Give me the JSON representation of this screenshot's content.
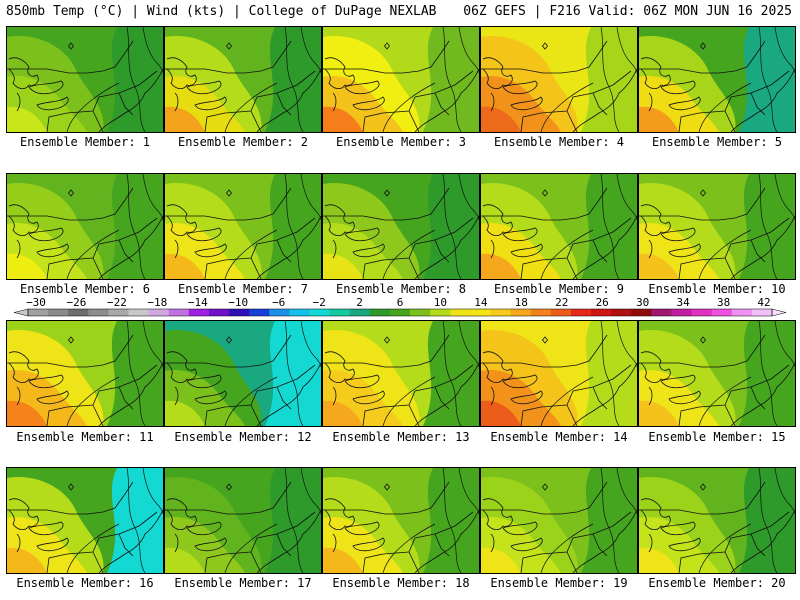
{
  "header": {
    "left_title": "850mb Temp (°C) | Wind (kts) | College of DuPage NEXLAB",
    "right_title": "06Z GEFS | F216 Valid: 06Z MON JUN 16 2025"
  },
  "members": [
    {
      "label": "Ensemble Member: 1",
      "scheme": [
        "#c8e61a",
        "#9bd21a",
        "#7cc01c",
        "#46a51f",
        "#2e9a2a"
      ]
    },
    {
      "label": "Ensemble Member: 2",
      "scheme": [
        "#f3a21c",
        "#e6dd10",
        "#b4dc1a",
        "#62b41e",
        "#2e9a2a"
      ]
    },
    {
      "label": "Ensemble Member: 3",
      "scheme": [
        "#f57e1a",
        "#f3c21b",
        "#f1ee12",
        "#b2da1a",
        "#70b91e"
      ]
    },
    {
      "label": "Ensemble Member: 4",
      "scheme": [
        "#ec6a1a",
        "#f2921b",
        "#f5c41b",
        "#eae616",
        "#a6d51a"
      ]
    },
    {
      "label": "Ensemble Member: 5",
      "scheme": [
        "#f49b1b",
        "#f0dc12",
        "#a6d51a",
        "#46a51f",
        "#1aa880"
      ]
    },
    {
      "label": "Ensemble Member: 6",
      "scheme": [
        "#eded12",
        "#c4e31a",
        "#94cd1a",
        "#62b41e",
        "#46a51f"
      ]
    },
    {
      "label": "Ensemble Member: 7",
      "scheme": [
        "#f5b81b",
        "#eee417",
        "#b4dc1a",
        "#7cc01c",
        "#46a51f"
      ]
    },
    {
      "label": "Ensemble Member: 8",
      "scheme": [
        "#e8e314",
        "#b4dc1a",
        "#8fc81c",
        "#46a51f",
        "#2e9a2a"
      ]
    },
    {
      "label": "Ensemble Member: 9",
      "scheme": [
        "#f5a81b",
        "#f0df12",
        "#b4dc1a",
        "#7cc01c",
        "#46a51f"
      ]
    },
    {
      "label": "Ensemble Member: 10",
      "scheme": [
        "#f5c21b",
        "#eee417",
        "#b4dc1a",
        "#7cc01c",
        "#46a51f"
      ]
    },
    {
      "label": "Ensemble Member: 11",
      "scheme": [
        "#f5821a",
        "#f5b81b",
        "#eee417",
        "#9bd21a",
        "#46a51f"
      ]
    },
    {
      "label": "Ensemble Member: 12",
      "scheme": [
        "#b4dc1a",
        "#7cc01c",
        "#46a51f",
        "#1aa880",
        "#14d8d2"
      ]
    },
    {
      "label": "Ensemble Member: 13",
      "scheme": [
        "#f5a81b",
        "#f5cc1b",
        "#eee417",
        "#b4dc1a",
        "#46a51f"
      ]
    },
    {
      "label": "Ensemble Member: 14",
      "scheme": [
        "#ec5c1a",
        "#f2921b",
        "#f5c41b",
        "#eee417",
        "#b4dc1a"
      ]
    },
    {
      "label": "Ensemble Member: 15",
      "scheme": [
        "#f5c21b",
        "#eee417",
        "#b4dc1a",
        "#7cc01c",
        "#46a51f"
      ]
    },
    {
      "label": "Ensemble Member: 16",
      "scheme": [
        "#f5b81b",
        "#eee417",
        "#b4dc1a",
        "#46a51f",
        "#14d8d2"
      ]
    },
    {
      "label": "Ensemble Member: 17",
      "scheme": [
        "#b4dc1a",
        "#8fc81c",
        "#62b41e",
        "#46a51f",
        "#2e9a2a"
      ]
    },
    {
      "label": "Ensemble Member: 18",
      "scheme": [
        "#f5b81b",
        "#eee417",
        "#b4dc1a",
        "#7cc01c",
        "#46a51f"
      ]
    },
    {
      "label": "Ensemble Member: 19",
      "scheme": [
        "#eee417",
        "#c4e31a",
        "#9bd21a",
        "#7cc01c",
        "#46a51f"
      ]
    },
    {
      "label": "Ensemble Member: 20",
      "scheme": [
        "#eee417",
        "#c4e31a",
        "#9bd21a",
        "#62b41e",
        "#2e9a2a"
      ]
    }
  ],
  "colorbar": {
    "ticks": [
      "-30",
      "-26",
      "-22",
      "-18",
      "-14",
      "-10",
      "-6",
      "-2",
      "2",
      "6",
      "10",
      "14",
      "18",
      "22",
      "26",
      "30",
      "34",
      "38",
      "42"
    ],
    "colors": [
      "#a0a0a0",
      "#8a8a8a",
      "#6e6e6e",
      "#8c8c8c",
      "#a8a8a8",
      "#c8c8c8",
      "#d0a8e0",
      "#c070e0",
      "#a020e0",
      "#7010c8",
      "#3010b8",
      "#1840d8",
      "#1a90e8",
      "#14c0e8",
      "#14d8d2",
      "#14c8a0",
      "#1aa880",
      "#2e9a2a",
      "#46a51f",
      "#7cc01c",
      "#b4dc1a",
      "#eee417",
      "#f5e414",
      "#f5cc1b",
      "#f5a81b",
      "#f2821a",
      "#ec5c1a",
      "#e6281a",
      "#d01414",
      "#b01010",
      "#900a0a",
      "#a01870",
      "#c020a0",
      "#e030c0",
      "#f050e0",
      "#f090f0",
      "#f0c0f8"
    ]
  }
}
